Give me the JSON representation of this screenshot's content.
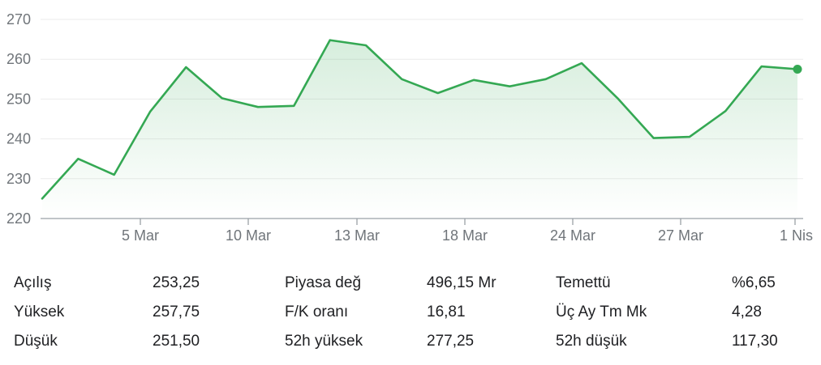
{
  "chart_data": {
    "type": "area",
    "yticks": [
      "270",
      "260",
      "250",
      "240",
      "230",
      "220"
    ],
    "ylim": [
      220,
      270
    ],
    "xticks": [
      "5 Mar",
      "10 Mar",
      "13 Mar",
      "18 Mar",
      "24 Mar",
      "27 Mar",
      "1 Nis"
    ],
    "series": [
      {
        "values": [
          225.0,
          235.0,
          231.0,
          246.8,
          258.0,
          250.2,
          248.0,
          248.3,
          264.8,
          263.5,
          255.0,
          251.5,
          254.8,
          253.2,
          255.0,
          259.0,
          250.2,
          240.2,
          240.5,
          247.0,
          258.2,
          257.5
        ]
      }
    ],
    "last_point_marker": true,
    "grid": true,
    "colors": {
      "line": "#34a853",
      "fill": "#34a853",
      "grid": "#ebebeb",
      "axis": "#9aa0a6"
    }
  },
  "stats": {
    "rows": [
      {
        "col1_label": "Açılış",
        "col1_value": "253,25",
        "col2_label": "Piyasa değ",
        "col2_value": "496,15 Mr",
        "col3_label": "Temettü",
        "col3_value": "%6,65"
      },
      {
        "col1_label": "Yüksek",
        "col1_value": "257,75",
        "col2_label": "F/K oranı",
        "col2_value": "16,81",
        "col3_label": "Üç Ay Tm Mk",
        "col3_value": "4,28"
      },
      {
        "col1_label": "Düşük",
        "col1_value": "251,50",
        "col2_label": "52h yüksek",
        "col2_value": "277,25",
        "col3_label": "52h düşük",
        "col3_value": "117,30"
      }
    ]
  }
}
